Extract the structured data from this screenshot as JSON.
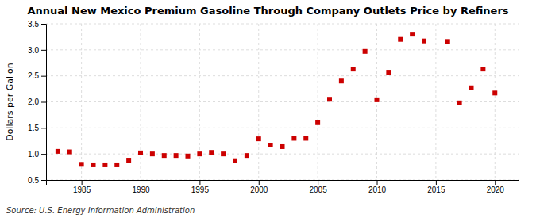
{
  "chart_data": {
    "type": "scatter",
    "title": "Annual New Mexico Premium Gasoline Through Company Outlets Price by Refiners",
    "ylabel": "Dollars per Gallon",
    "annotations": [
      "Source: U.S. Energy Information Administration"
    ],
    "x": [
      1983,
      1984,
      1985,
      1986,
      1987,
      1988,
      1989,
      1990,
      1991,
      1992,
      1993,
      1994,
      1995,
      1996,
      1997,
      1998,
      1999,
      2000,
      2001,
      2002,
      2003,
      2004,
      2005,
      2006,
      2007,
      2008,
      2009,
      2010,
      2011,
      2012,
      2013,
      2014,
      2016,
      2017,
      2018,
      2019,
      2020
    ],
    "values": [
      1.05,
      1.04,
      0.8,
      0.79,
      0.79,
      0.79,
      0.88,
      1.02,
      1.0,
      0.97,
      0.97,
      0.96,
      1.0,
      1.03,
      1.0,
      0.87,
      0.97,
      1.29,
      1.17,
      1.14,
      1.3,
      1.3,
      1.6,
      2.05,
      2.4,
      2.63,
      2.97,
      2.04,
      2.57,
      3.2,
      3.3,
      3.17,
      3.16,
      1.98,
      2.27,
      2.63,
      2.17
    ],
    "color": "#cc0000",
    "marker": "square",
    "xlim": [
      1982,
      2022
    ],
    "ylim": [
      0.5,
      3.5
    ],
    "xticks": [
      1985,
      1990,
      1995,
      2000,
      2005,
      2010,
      2015,
      2020
    ],
    "yticks": [
      0.5,
      {
        "value": 1.0,
        "label": "1.0"
      },
      1.5,
      {
        "value": 2.0,
        "label": "2.0"
      },
      2.5,
      {
        "value": 3.0,
        "label": "3.0"
      },
      3.5
    ],
    "grid": true
  }
}
